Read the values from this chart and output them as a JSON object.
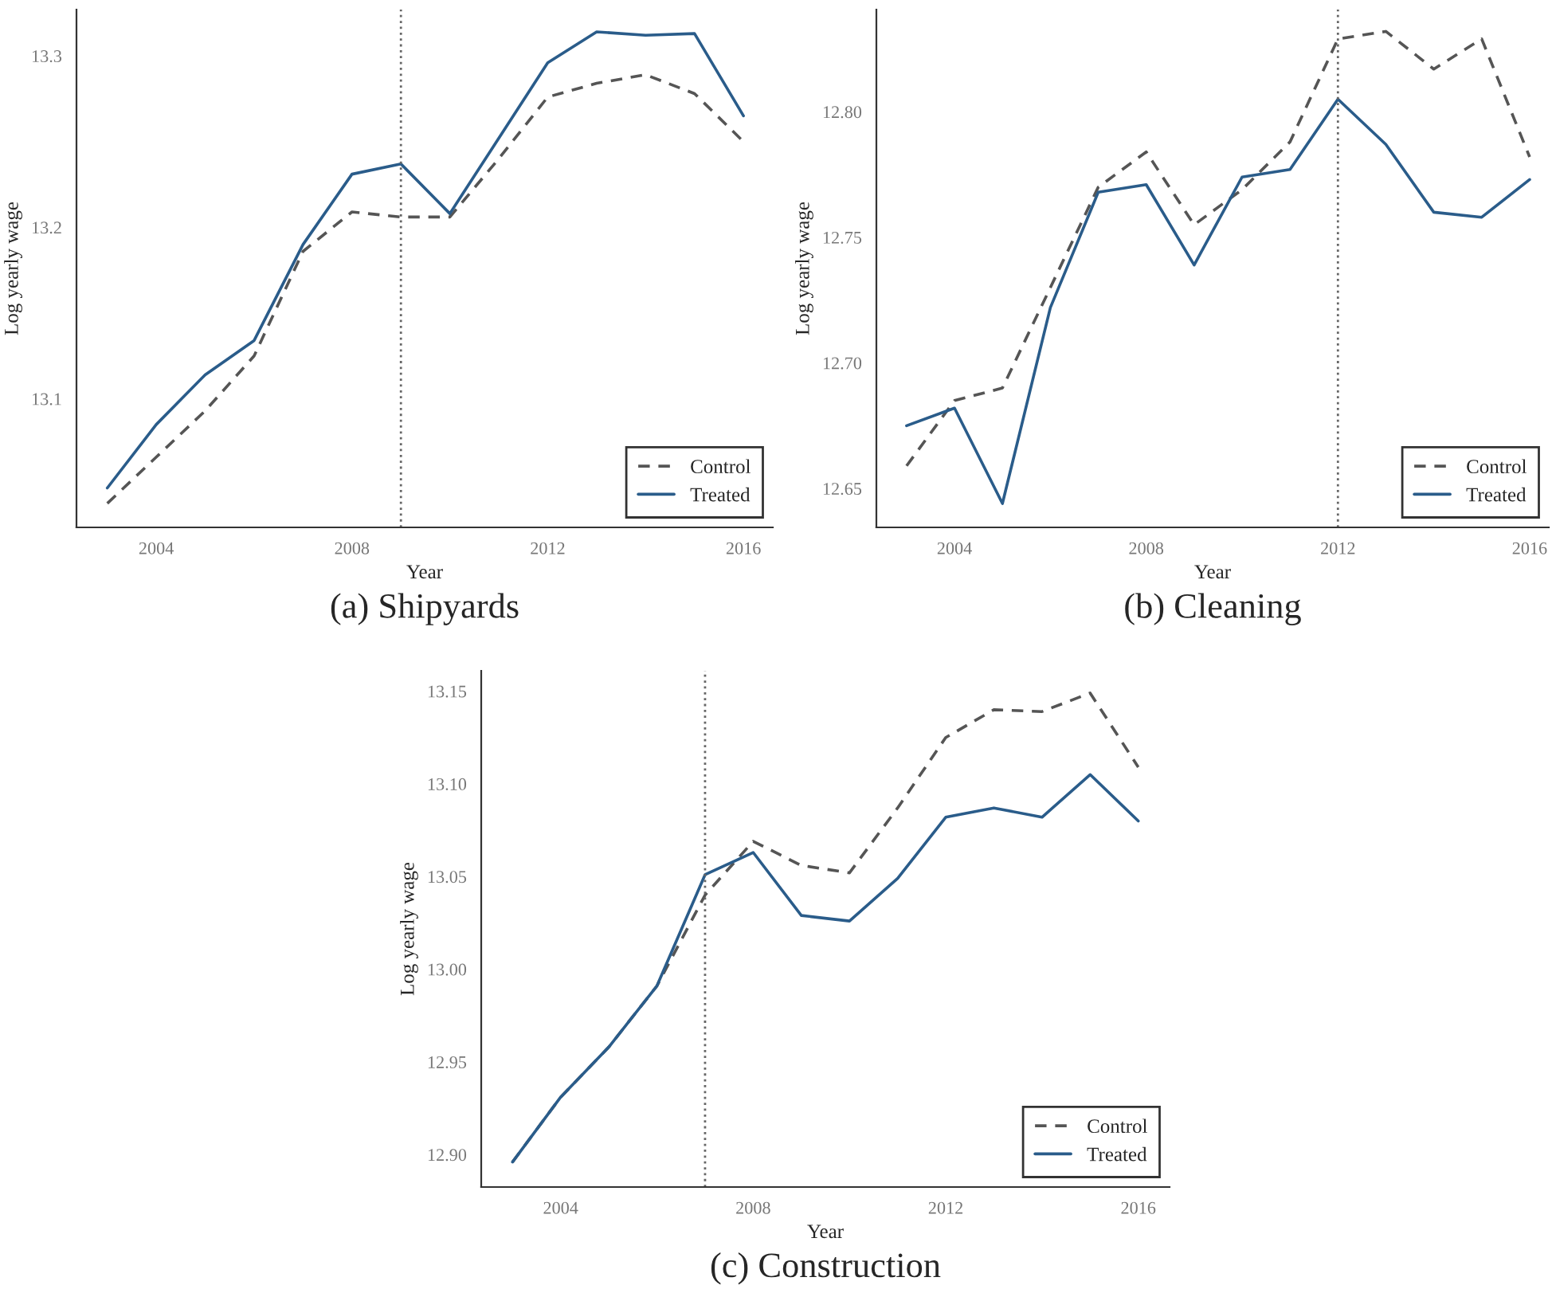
{
  "chart_data": [
    {
      "type": "line",
      "title": "(a) Shipyards",
      "xlabel": "Year",
      "ylabel": "Log yearly wage",
      "x": [
        2003,
        2004,
        2005,
        2006,
        2007,
        2008,
        2009,
        2010,
        2011,
        2012,
        2013,
        2014,
        2015,
        2016
      ],
      "series": [
        {
          "name": "Control",
          "color": "#555555",
          "line_style": "dashed",
          "values": [
            13.039,
            13.066,
            13.093,
            13.125,
            13.186,
            13.209,
            13.206,
            13.206,
            13.24,
            13.276,
            13.284,
            13.289,
            13.278,
            13.25
          ]
        },
        {
          "name": "Treated",
          "color": "#2a5c8a",
          "line_style": "solid",
          "values": [
            13.048,
            13.085,
            13.114,
            13.134,
            13.19,
            13.231,
            13.237,
            13.208,
            13.252,
            13.296,
            13.314,
            13.312,
            13.313,
            13.265
          ]
        }
      ],
      "xlim": [
        2002.37,
        2016.6
      ],
      "xticks": [
        2004,
        2008,
        2012,
        2016
      ],
      "ylim": [
        13.025,
        13.327
      ],
      "yticks": [
        13.1,
        13.2,
        13.3
      ],
      "ref_lines": [
        {
          "axis": "x",
          "value": 2009,
          "color": "#666666",
          "line_style": "dotted"
        }
      ],
      "grid": false,
      "legend": "bottom right",
      "marker": "none"
    },
    {
      "type": "line",
      "title": "(b) Cleaning",
      "xlabel": "Year",
      "ylabel": "Log yearly wage",
      "x": [
        2003,
        2004,
        2005,
        2006,
        2007,
        2008,
        2009,
        2010,
        2011,
        2012,
        2013,
        2014,
        2015,
        2016
      ],
      "series": [
        {
          "name": "Control",
          "color": "#555555",
          "line_style": "dashed",
          "values": [
            12.659,
            12.685,
            12.69,
            12.73,
            12.77,
            12.784,
            12.755,
            12.769,
            12.788,
            12.829,
            12.832,
            12.817,
            12.829,
            12.782
          ]
        },
        {
          "name": "Treated",
          "color": "#2a5c8a",
          "line_style": "solid",
          "values": [
            12.675,
            12.682,
            12.644,
            12.722,
            12.768,
            12.771,
            12.739,
            12.774,
            12.777,
            12.805,
            12.787,
            12.76,
            12.758,
            12.773
          ]
        }
      ],
      "xlim": [
        2002.37,
        2016.4
      ],
      "xticks": [
        2004,
        2008,
        2012,
        2016
      ],
      "ylim": [
        12.6345,
        12.8407
      ],
      "yticks": [
        {
          "value": 12.65,
          "label": "12.65"
        },
        {
          "value": 12.7,
          "label": "12.70"
        },
        {
          "value": 12.75,
          "label": "12.75"
        },
        {
          "value": 12.8,
          "label": "12.80"
        }
      ],
      "ref_lines": [
        {
          "axis": "x",
          "value": 2012,
          "color": "#666666",
          "line_style": "dotted"
        }
      ],
      "grid": false,
      "legend": "bottom right",
      "marker": "none"
    },
    {
      "type": "line",
      "title": "(c) Construction",
      "xlabel": "Year",
      "ylabel": "Log yearly wage",
      "x": [
        2003,
        2004,
        2005,
        2006,
        2007,
        2008,
        2009,
        2010,
        2011,
        2012,
        2013,
        2014,
        2015,
        2016
      ],
      "series": [
        {
          "name": "Control",
          "color": "#555555",
          "line_style": "dashed",
          "values": [
            12.896,
            12.931,
            12.958,
            12.991,
            13.04,
            13.069,
            13.056,
            13.052,
            13.087,
            13.125,
            13.14,
            13.139,
            13.149,
            13.109
          ]
        },
        {
          "name": "Treated",
          "color": "#2a5c8a",
          "line_style": "solid",
          "values": [
            12.896,
            12.931,
            12.958,
            12.991,
            13.051,
            13.063,
            13.029,
            13.026,
            13.049,
            13.082,
            13.087,
            13.082,
            13.105,
            13.08
          ]
        }
      ],
      "xlim": [
        2002.35,
        2016.65
      ],
      "xticks": [
        2004,
        2008,
        2012,
        2016
      ],
      "ylim": [
        12.8825,
        13.161
      ],
      "yticks": [
        {
          "value": 12.9,
          "label": "12.90"
        },
        {
          "value": 12.95,
          "label": "12.95"
        },
        {
          "value": 13.0,
          "label": "13.00"
        },
        {
          "value": 13.05,
          "label": "13.05"
        },
        {
          "value": 13.1,
          "label": "13.10"
        },
        {
          "value": 13.15,
          "label": "13.15"
        }
      ],
      "ref_lines": [
        {
          "axis": "x",
          "value": 2007,
          "color": "#666666",
          "line_style": "dotted"
        }
      ],
      "grid": false,
      "legend": "bottom right",
      "marker": "none"
    }
  ]
}
